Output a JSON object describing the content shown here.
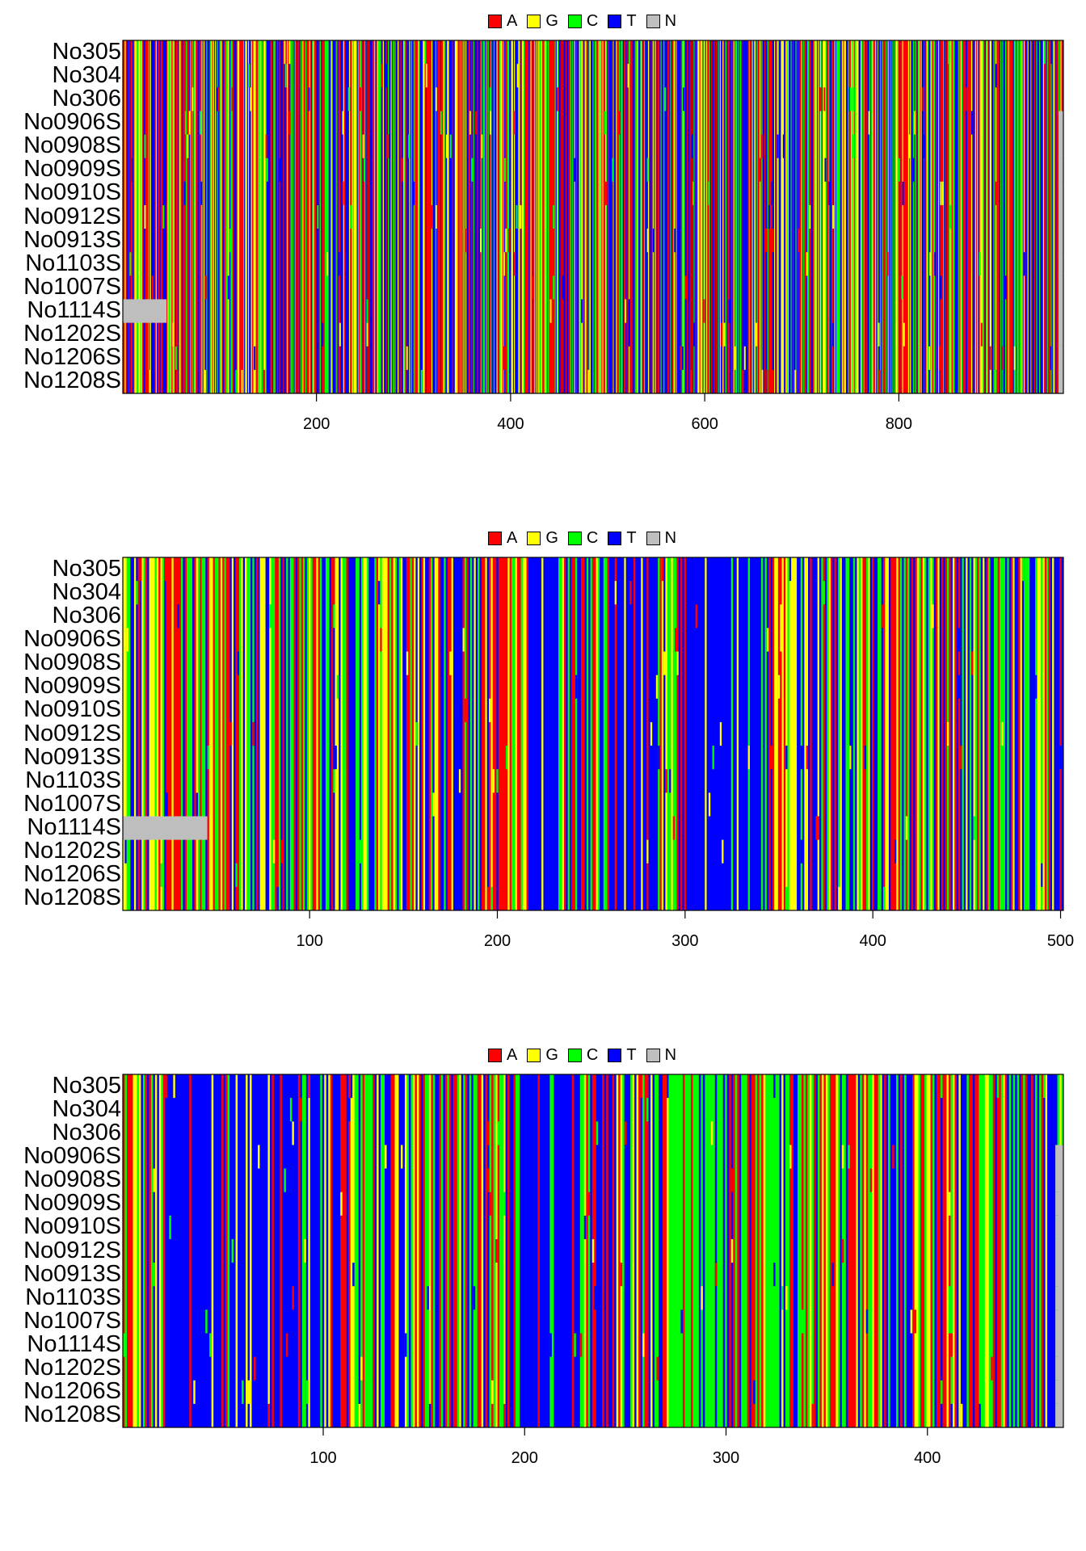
{
  "legend": [
    {
      "label": "A",
      "color": "#FF0000"
    },
    {
      "label": "G",
      "color": "#FFFF00"
    },
    {
      "label": "C",
      "color": "#00FF00"
    },
    {
      "label": "T",
      "color": "#0000FF"
    },
    {
      "label": "N",
      "color": "#BEBEBE"
    }
  ],
  "samples": [
    "No305",
    "No304",
    "No306",
    "No0906S",
    "No0908S",
    "No0909S",
    "No0910S",
    "No0912S",
    "No0913S",
    "No1103S",
    "No1007S",
    "No1114S",
    "No1202S",
    "No1206S",
    "No1208S"
  ],
  "chart_data": [
    {
      "type": "heatmap",
      "xlim": [
        1,
        969
      ],
      "xticks": [
        200,
        400,
        600,
        800
      ],
      "tick_labels": [
        "200",
        "400",
        "600",
        "800"
      ],
      "sequence_length": 969,
      "seed": 11,
      "missing": [
        {
          "sample": "No1114S",
          "from": 1,
          "to": 45
        }
      ],
      "right_end_missing": [
        {
          "sample": "No0906S",
          "from": 965,
          "to": 969
        },
        {
          "sample": "No0908S",
          "from": 965,
          "to": 969
        },
        {
          "sample": "No0909S",
          "from": 965,
          "to": 969
        },
        {
          "sample": "No0910S",
          "from": 965,
          "to": 969
        },
        {
          "sample": "No0912S",
          "from": 965,
          "to": 969
        },
        {
          "sample": "No0913S",
          "from": 965,
          "to": 969
        },
        {
          "sample": "No1103S",
          "from": 965,
          "to": 969
        },
        {
          "sample": "No1007S",
          "from": 965,
          "to": 969
        },
        {
          "sample": "No1114S",
          "from": 965,
          "to": 969
        },
        {
          "sample": "No1202S",
          "from": 965,
          "to": 969
        },
        {
          "sample": "No1206S",
          "from": 965,
          "to": 969
        },
        {
          "sample": "No1208S",
          "from": 965,
          "to": 969
        }
      ],
      "base_weights": {
        "A": 0.33,
        "G": 0.17,
        "C": 0.17,
        "T": 0.33
      }
    },
    {
      "type": "heatmap",
      "xlim": [
        1,
        501
      ],
      "xticks": [
        100,
        200,
        300,
        400,
        500
      ],
      "tick_labels": [
        "100",
        "200",
        "300",
        "400",
        "500"
      ],
      "sequence_length": 501,
      "seed": 23,
      "missing": [
        {
          "sample": "No1114S",
          "from": 1,
          "to": 45
        }
      ],
      "blue_blocks": [
        [
          255,
          285
        ],
        [
          218,
          232
        ],
        [
          300,
          340
        ]
      ],
      "red_blocks": [
        [
          24,
          30
        ]
      ],
      "base_weights": {
        "A": 0.22,
        "G": 0.24,
        "C": 0.24,
        "T": 0.3
      }
    },
    {
      "type": "heatmap",
      "xlim": [
        1,
        467
      ],
      "xticks": [
        100,
        200,
        300,
        400
      ],
      "tick_labels": [
        "100",
        "200",
        "300",
        "400"
      ],
      "sequence_length": 467,
      "seed": 37,
      "missing": [
        {
          "sample": "No0906S",
          "from": 464,
          "to": 467
        },
        {
          "sample": "No0908S",
          "from": 464,
          "to": 467
        },
        {
          "sample": "No0909S",
          "from": 464,
          "to": 467
        },
        {
          "sample": "No0910S",
          "from": 464,
          "to": 467
        },
        {
          "sample": "No0912S",
          "from": 464,
          "to": 467
        },
        {
          "sample": "No0913S",
          "from": 464,
          "to": 467
        },
        {
          "sample": "No1103S",
          "from": 464,
          "to": 467
        },
        {
          "sample": "No1007S",
          "from": 464,
          "to": 467
        },
        {
          "sample": "No1114S",
          "from": 464,
          "to": 467
        },
        {
          "sample": "No1202S",
          "from": 464,
          "to": 467
        },
        {
          "sample": "No1206S",
          "from": 464,
          "to": 467
        },
        {
          "sample": "No1208S",
          "from": 464,
          "to": 467
        }
      ],
      "blue_blocks": [
        [
          22,
          48
        ],
        [
          54,
          88
        ],
        [
          92,
          108
        ],
        [
          200,
          228
        ]
      ],
      "green_blocks": [
        [
          265,
          300
        ],
        [
          315,
          330
        ]
      ],
      "base_weights": {
        "A": 0.28,
        "G": 0.16,
        "C": 0.26,
        "T": 0.3
      }
    }
  ]
}
